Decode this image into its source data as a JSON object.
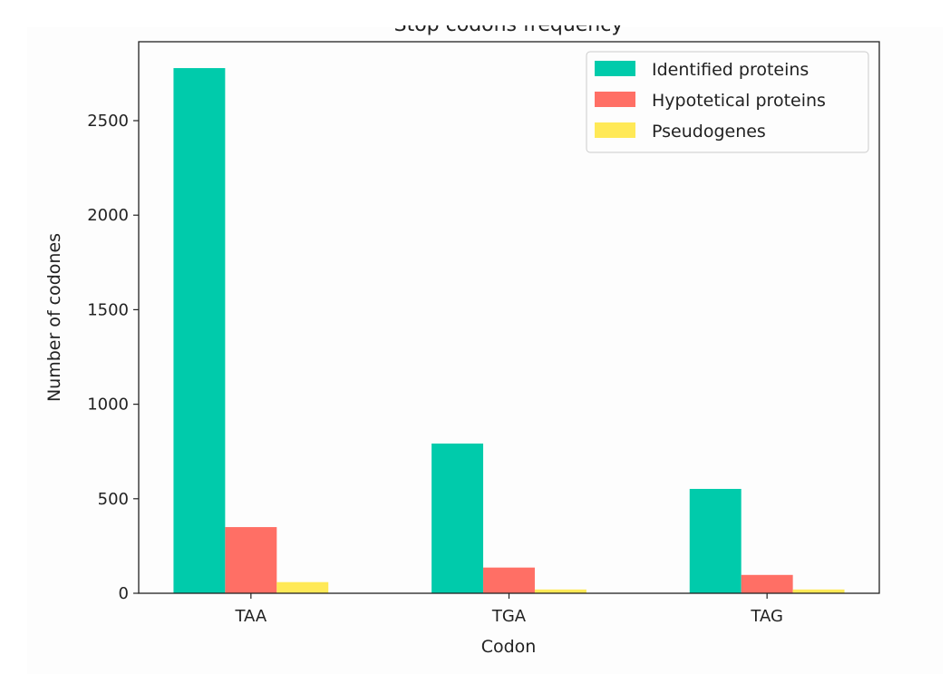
{
  "chart_data": {
    "type": "bar",
    "title": "Stop codons frequency",
    "xlabel": "Codon",
    "ylabel": "Number of codones",
    "categories": [
      "TAA",
      "TGA",
      "TAG"
    ],
    "series": [
      {
        "name": "Identified proteins",
        "color": "#00cbab",
        "values": [
          2778,
          792,
          552
        ]
      },
      {
        "name": "Hypotetical proteins",
        "color": "#ff6f65",
        "values": [
          350,
          136,
          97
        ]
      },
      {
        "name": "Pseudogenes",
        "color": "#ffe957",
        "values": [
          59,
          20,
          20
        ]
      }
    ],
    "yticks": [
      0,
      500,
      1000,
      1500,
      2000,
      2500
    ],
    "ylim": [
      0,
      2920
    ],
    "grid": false,
    "legend": "top-right"
  }
}
